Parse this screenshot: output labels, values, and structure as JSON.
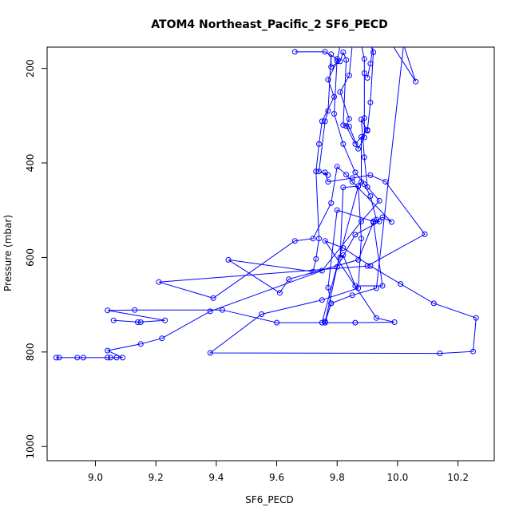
{
  "chart_data": {
    "type": "line",
    "title": "ATOM4 Northeast_Pacific_2 SF6_PECD",
    "xlabel": "SF6_PECD",
    "ylabel": "Pressure (mbar)",
    "xlim": [
      8.84,
      10.32
    ],
    "ylim": [
      1030,
      155
    ],
    "y_reversed": true,
    "x_ticks": [
      9.0,
      9.2,
      9.4,
      9.6,
      9.8,
      10.0,
      10.2
    ],
    "x_tick_labels": [
      "9.0",
      "9.2",
      "9.4",
      "9.6",
      "9.8",
      "10.0",
      "10.2"
    ],
    "y_ticks": [
      200,
      400,
      600,
      800,
      1000
    ],
    "y_tick_labels": [
      "200",
      "400",
      "600",
      "800",
      "1000"
    ],
    "grid": false,
    "series": [
      {
        "color": "#0000ff",
        "marker": "open-circle",
        "points": [
          [
            8.87,
            812
          ],
          [
            8.88,
            812
          ],
          [
            8.94,
            812
          ],
          [
            8.96,
            812
          ],
          [
            9.04,
            812
          ],
          [
            9.05,
            812
          ],
          [
            9.07,
            812
          ],
          [
            9.09,
            812
          ],
          [
            9.04,
            797
          ],
          [
            9.15,
            783
          ],
          [
            9.22,
            771
          ],
          [
            9.38,
            714
          ],
          [
            9.75,
            628
          ],
          [
            9.88,
            524
          ],
          [
            9.94,
            480
          ],
          [
            9.9,
            451
          ],
          [
            9.89,
            388
          ],
          [
            9.88,
            308
          ],
          [
            9.9,
            332
          ],
          [
            9.91,
            272
          ],
          [
            9.92,
            166
          ],
          [
            9.91,
            150
          ],
          [
            9.81,
            150
          ],
          [
            9.8,
            185
          ],
          [
            9.77,
            224
          ],
          [
            9.79,
            260
          ],
          [
            9.75,
            312
          ],
          [
            9.74,
            360
          ],
          [
            9.73,
            418
          ],
          [
            9.74,
            560
          ],
          [
            9.73,
            603
          ],
          [
            9.72,
            630
          ],
          [
            9.44,
            605
          ],
          [
            9.61,
            675
          ],
          [
            9.64,
            646
          ],
          [
            9.87,
            605
          ],
          [
            9.92,
            526
          ],
          [
            9.95,
            515
          ],
          [
            9.98,
            525
          ],
          [
            9.85,
            440
          ],
          [
            9.83,
            425
          ],
          [
            9.8,
            408
          ],
          [
            9.78,
            485
          ],
          [
            9.72,
            560
          ],
          [
            9.66,
            565
          ],
          [
            9.39,
            686
          ],
          [
            9.21,
            652
          ],
          [
            9.9,
            618
          ],
          [
            10.09,
            551
          ],
          [
            9.96,
            440
          ],
          [
            9.91,
            426
          ],
          [
            9.85,
            432
          ],
          [
            9.77,
            440
          ],
          [
            9.76,
            420
          ],
          [
            9.77,
            426
          ],
          [
            9.74,
            418
          ],
          [
            9.76,
            312
          ],
          [
            9.77,
            290
          ],
          [
            9.78,
            170
          ],
          [
            9.78,
            197
          ],
          [
            9.81,
            185
          ],
          [
            9.82,
            166
          ],
          [
            9.83,
            182
          ],
          [
            9.82,
            320
          ],
          [
            9.84,
            323
          ],
          [
            9.87,
            370
          ],
          [
            9.89,
            346
          ],
          [
            9.89,
            305
          ],
          [
            9.89,
            210
          ],
          [
            9.89,
            180
          ],
          [
            9.88,
            150
          ],
          [
            9.85,
            150
          ],
          [
            9.84,
            215
          ],
          [
            9.81,
            250
          ],
          [
            9.84,
            307
          ],
          [
            9.83,
            322
          ],
          [
            9.86,
            360
          ],
          [
            9.9,
            330
          ],
          [
            9.88,
            345
          ],
          [
            9.88,
            440
          ],
          [
            9.87,
            449
          ],
          [
            9.82,
            452
          ],
          [
            9.81,
            600
          ],
          [
            9.82,
            595
          ],
          [
            9.86,
            660
          ],
          [
            9.95,
            660
          ],
          [
            9.92,
            524
          ],
          [
            9.8,
            500
          ],
          [
            9.77,
            664
          ],
          [
            9.78,
            697
          ],
          [
            9.76,
            735
          ],
          [
            9.76,
            738
          ],
          [
            9.86,
            738
          ],
          [
            9.99,
            737
          ],
          [
            9.93,
            728
          ],
          [
            9.76,
            565
          ],
          [
            9.82,
            580
          ],
          [
            9.91,
            618
          ],
          [
            10.01,
            656
          ],
          [
            10.12,
            697
          ],
          [
            10.26,
            728
          ],
          [
            10.25,
            799
          ],
          [
            10.14,
            803
          ],
          [
            9.38,
            802
          ],
          [
            9.55,
            720
          ],
          [
            9.75,
            690
          ],
          [
            9.87,
            665
          ],
          [
            9.88,
            560
          ],
          [
            9.87,
            449
          ],
          [
            9.75,
            738
          ],
          [
            9.6,
            738
          ],
          [
            9.42,
            711
          ],
          [
            9.13,
            711
          ],
          [
            9.04,
            712
          ],
          [
            9.23,
            733
          ],
          [
            9.14,
            737
          ],
          [
            9.15,
            737
          ],
          [
            9.06,
            733
          ]
        ]
      },
      {
        "color": "#0000ff",
        "marker": "open-circle",
        "points": [
          [
            9.66,
            165
          ],
          [
            9.76,
            165
          ],
          [
            9.8,
            180
          ],
          [
            9.79,
            296
          ],
          [
            9.82,
            360
          ],
          [
            9.86,
            420
          ],
          [
            9.89,
            445
          ],
          [
            9.91,
            470
          ],
          [
            9.93,
            520
          ],
          [
            9.94,
            524
          ],
          [
            9.86,
            552
          ],
          [
            9.8,
            620
          ],
          [
            9.76,
            738
          ],
          [
            9.78,
            697
          ],
          [
            9.85,
            680
          ],
          [
            9.93,
            665
          ],
          [
            10.02,
            150
          ],
          [
            10.06,
            228
          ],
          [
            9.98,
            148
          ],
          [
            9.92,
            150
          ],
          [
            9.91,
            190
          ],
          [
            9.9,
            220
          ]
        ]
      }
    ]
  }
}
